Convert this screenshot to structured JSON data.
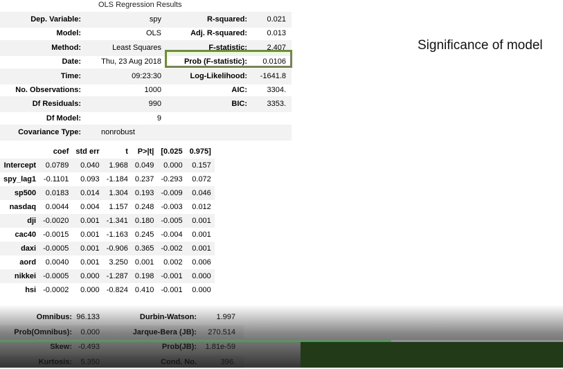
{
  "summary": {
    "title": "OLS Regression Results",
    "rows": [
      {
        "l1": "Dep. Variable:",
        "v1": "spy",
        "l2": "R-squared:",
        "v2": "0.021"
      },
      {
        "l1": "Model:",
        "v1": "OLS",
        "l2": "Adj. R-squared:",
        "v2": "0.013"
      },
      {
        "l1": "Method:",
        "v1": "Least Squares",
        "l2": "F-statistic:",
        "v2": "2.407"
      },
      {
        "l1": "Date:",
        "v1": "Thu, 23 Aug 2018",
        "l2": "Prob (F-statistic):",
        "v2": "0.0106"
      },
      {
        "l1": "Time:",
        "v1": "09:23:30",
        "l2": "Log-Likelihood:",
        "v2": "-1641.8"
      },
      {
        "l1": "No. Observations:",
        "v1": "1000",
        "l2": "AIC:",
        "v2": "3304."
      },
      {
        "l1": "Df Residuals:",
        "v1": "990",
        "l2": "BIC:",
        "v2": "3353."
      },
      {
        "l1": "Df Model:",
        "v1": "9",
        "l2": "",
        "v2": ""
      },
      {
        "l1": "Covariance Type:",
        "v1": "nonrobust",
        "l2": "",
        "v2": ""
      }
    ]
  },
  "annotation": {
    "text": "Significance of model",
    "highlight_color": "#6e8d3a"
  },
  "coefficients": {
    "headers": [
      "",
      "coef",
      "std err",
      "t",
      "P>|t|",
      "[0.025",
      "0.975]"
    ],
    "rows": [
      [
        "Intercept",
        "0.0789",
        "0.040",
        "1.968",
        "0.049",
        "0.000",
        "0.157"
      ],
      [
        "spy_lag1",
        "-0.1101",
        "0.093",
        "-1.184",
        "0.237",
        "-0.293",
        "0.072"
      ],
      [
        "sp500",
        "0.0183",
        "0.014",
        "1.304",
        "0.193",
        "-0.009",
        "0.046"
      ],
      [
        "nasdaq",
        "0.0044",
        "0.004",
        "1.157",
        "0.248",
        "-0.003",
        "0.012"
      ],
      [
        "dji",
        "-0.0020",
        "0.001",
        "-1.341",
        "0.180",
        "-0.005",
        "0.001"
      ],
      [
        "cac40",
        "-0.0015",
        "0.001",
        "-1.163",
        "0.245",
        "-0.004",
        "0.001"
      ],
      [
        "daxi",
        "-0.0005",
        "0.001",
        "-0.906",
        "0.365",
        "-0.002",
        "0.001"
      ],
      [
        "aord",
        "0.0040",
        "0.001",
        "3.250",
        "0.001",
        "0.002",
        "0.006"
      ],
      [
        "nikkei",
        "-0.0005",
        "0.000",
        "-1.287",
        "0.198",
        "-0.001",
        "0.000"
      ],
      [
        "hsi",
        "-0.0002",
        "0.000",
        "-0.824",
        "0.410",
        "-0.001",
        "0.000"
      ]
    ]
  },
  "diagnostics": {
    "rows": [
      {
        "l1": "Omnibus:",
        "v1": "96.133",
        "l2": "Durbin-Watson:",
        "v2": "1.997"
      },
      {
        "l1": "Prob(Omnibus):",
        "v1": "0.000",
        "l2": "Jarque-Bera (JB):",
        "v2": "270.514"
      },
      {
        "l1": "Skew:",
        "v1": "-0.493",
        "l2": "Prob(JB):",
        "v2": "1.81e-59"
      },
      {
        "l1": "Kurtosis:",
        "v1": "5.350",
        "l2": "Cond. No.",
        "v2": "396."
      }
    ]
  },
  "video": {
    "progress_played_fraction": 0.695,
    "progress_buffered_fraction": 0.0,
    "played_color": "#3da84a",
    "panel_color": "#223a18"
  }
}
